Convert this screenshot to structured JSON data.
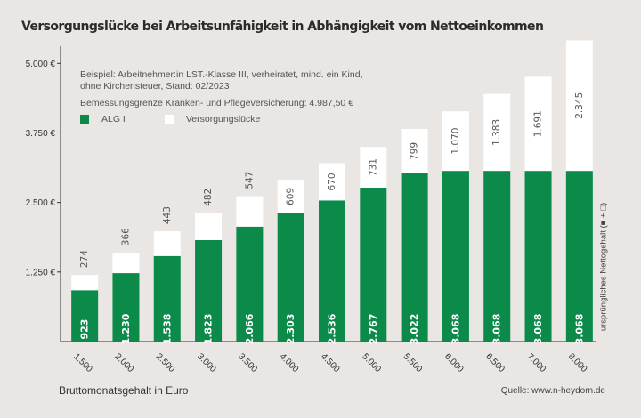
{
  "title": "Versorgungslücke bei Arbeitsunfähigkeit in Abhängigkeit vom Nettoeinkommen",
  "notes": {
    "line1": "Beispiel: Arbeitnehmer:in LST.-Klasse III, verheiratet, mind. ein Kind,",
    "line2": "ohne Kirchensteuer, Stand: 02/2023",
    "line3": "Bemessungsgrenze Kranken- und Pflegeversicherung: 4.987,50 €"
  },
  "source": "Quelle: www.n-heydorn.de",
  "colors": {
    "alg": "#0b8a4a",
    "gap": "#ffffff",
    "background": "#e9e6e3"
  },
  "chart_data": {
    "type": "bar",
    "stacked": true,
    "title": "Versorgungslücke bei Arbeitsunfähigkeit in Abhängigkeit vom Nettoeinkommen",
    "xlabel": "Bruttomonatsgehalt in Euro",
    "ylabel": "",
    "right_axis_label": "ursprüngliches Nettogehalt (■ + □)",
    "categories": [
      "1.500",
      "2.000",
      "2.500",
      "3.000",
      "3.500",
      "4.000",
      "4.500",
      "5.000",
      "5.500",
      "6.000",
      "6.500",
      "7.000",
      "8.000"
    ],
    "series": [
      {
        "name": "ALG I",
        "values": [
          923,
          1230,
          1538,
          1823,
          2066,
          2303,
          2536,
          2767,
          3022,
          3068,
          3068,
          3068,
          3068
        ],
        "labels": [
          "923",
          "1.230",
          "1.538",
          "1.823",
          "2.066",
          "2.303",
          "2.536",
          "2.767",
          "3.022",
          "3.068",
          "3.068",
          "3.068",
          "3.068"
        ]
      },
      {
        "name": "Versorgungslücke",
        "values": [
          274,
          366,
          443,
          482,
          547,
          609,
          670,
          731,
          799,
          1070,
          1383,
          1691,
          2345
        ],
        "labels": [
          "274",
          "366",
          "443",
          "482",
          "547",
          "609",
          "670",
          "731",
          "799",
          "1.070",
          "1.383",
          "1.691",
          "2.345"
        ]
      }
    ],
    "yticks": [
      1250,
      2500,
      3750,
      5000
    ],
    "ytick_labels": [
      "1.250 €",
      "2.500 €",
      "3.750 €",
      "5.000 €"
    ],
    "ylim": [
      0,
      5500
    ],
    "grid": false,
    "legend": "top-left"
  }
}
